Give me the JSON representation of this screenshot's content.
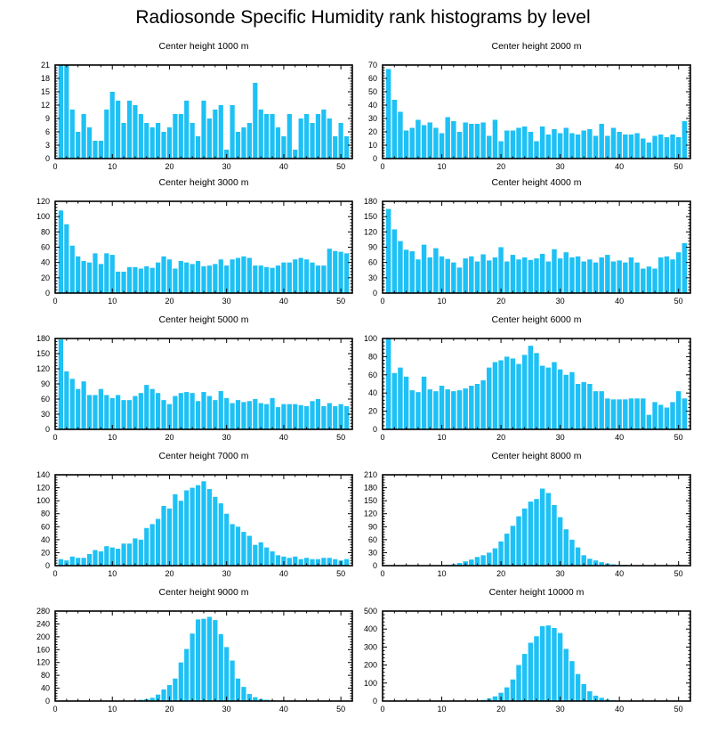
{
  "title": "Radiosonde Specific Humidity rank histograms by level",
  "colors": {
    "bar": "#1ec1f5",
    "axis": "#000000"
  },
  "chart_data": [
    {
      "type": "bar",
      "title": "Center height 1000 m",
      "x": [
        1,
        2,
        3,
        4,
        5,
        6,
        7,
        8,
        9,
        10,
        11,
        12,
        13,
        14,
        15,
        16,
        17,
        18,
        19,
        20,
        21,
        22,
        23,
        24,
        25,
        26,
        27,
        28,
        29,
        30,
        31,
        32,
        33,
        34,
        35,
        36,
        37,
        38,
        39,
        40,
        41,
        42,
        43,
        44,
        45,
        46,
        47,
        48,
        49,
        50,
        51
      ],
      "values": [
        21,
        21,
        11,
        6,
        10,
        7,
        4,
        4,
        11,
        15,
        13,
        8,
        13,
        12,
        10,
        8,
        7,
        8,
        6,
        7,
        10,
        10,
        13,
        8,
        5,
        13,
        9,
        11,
        12,
        2,
        12,
        6,
        7,
        8,
        17,
        11,
        10,
        10,
        7,
        5,
        10,
        2,
        9,
        10,
        8,
        10,
        11,
        9,
        5,
        8,
        5
      ],
      "xlim": [
        0,
        52
      ],
      "xticks": [
        0,
        10,
        20,
        30,
        40,
        50
      ],
      "ylim": [
        0,
        21
      ],
      "yticks": [
        0,
        3,
        6,
        9,
        12,
        15,
        18,
        21
      ]
    },
    {
      "type": "bar",
      "title": "Center height 2000 m",
      "x": [
        1,
        2,
        3,
        4,
        5,
        6,
        7,
        8,
        9,
        10,
        11,
        12,
        13,
        14,
        15,
        16,
        17,
        18,
        19,
        20,
        21,
        22,
        23,
        24,
        25,
        26,
        27,
        28,
        29,
        30,
        31,
        32,
        33,
        34,
        35,
        36,
        37,
        38,
        39,
        40,
        41,
        42,
        43,
        44,
        45,
        46,
        47,
        48,
        49,
        50,
        51
      ],
      "values": [
        67,
        44,
        35,
        21,
        23,
        29,
        25,
        27,
        23,
        19,
        31,
        28,
        20,
        27,
        26,
        26,
        27,
        17,
        29,
        13,
        21,
        21,
        23,
        24,
        20,
        13,
        24,
        18,
        22,
        19,
        23,
        19,
        18,
        21,
        22,
        17,
        26,
        17,
        23,
        20,
        18,
        18,
        19,
        15,
        12,
        17,
        18,
        16,
        18,
        16,
        28
      ],
      "xlim": [
        0,
        52
      ],
      "xticks": [
        0,
        10,
        20,
        30,
        40,
        50
      ],
      "ylim": [
        0,
        70
      ],
      "yticks": [
        0,
        10,
        20,
        30,
        40,
        50,
        60,
        70
      ]
    },
    {
      "type": "bar",
      "title": "Center height 3000 m",
      "x": [
        1,
        2,
        3,
        4,
        5,
        6,
        7,
        8,
        9,
        10,
        11,
        12,
        13,
        14,
        15,
        16,
        17,
        18,
        19,
        20,
        21,
        22,
        23,
        24,
        25,
        26,
        27,
        28,
        29,
        30,
        31,
        32,
        33,
        34,
        35,
        36,
        37,
        38,
        39,
        40,
        41,
        42,
        43,
        44,
        45,
        46,
        47,
        48,
        49,
        50,
        51
      ],
      "values": [
        108,
        90,
        62,
        48,
        42,
        40,
        52,
        38,
        52,
        50,
        28,
        28,
        34,
        34,
        32,
        35,
        33,
        40,
        48,
        44,
        32,
        42,
        40,
        38,
        42,
        35,
        36,
        38,
        44,
        36,
        44,
        46,
        48,
        46,
        36,
        36,
        34,
        33,
        36,
        40,
        40,
        44,
        46,
        44,
        40,
        36,
        36,
        58,
        55,
        54,
        52
      ],
      "xlim": [
        0,
        52
      ],
      "xticks": [
        0,
        10,
        20,
        30,
        40,
        50
      ],
      "ylim": [
        0,
        120
      ],
      "yticks": [
        0,
        20,
        40,
        60,
        80,
        100,
        120
      ]
    },
    {
      "type": "bar",
      "title": "Center height 4000 m",
      "x": [
        1,
        2,
        3,
        4,
        5,
        6,
        7,
        8,
        9,
        10,
        11,
        12,
        13,
        14,
        15,
        16,
        17,
        18,
        19,
        20,
        21,
        22,
        23,
        24,
        25,
        26,
        27,
        28,
        29,
        30,
        31,
        32,
        33,
        34,
        35,
        36,
        37,
        38,
        39,
        40,
        41,
        42,
        43,
        44,
        45,
        46,
        47,
        48,
        49,
        50,
        51
      ],
      "values": [
        165,
        125,
        102,
        85,
        82,
        66,
        95,
        70,
        88,
        72,
        67,
        60,
        50,
        68,
        72,
        62,
        76,
        64,
        70,
        90,
        62,
        75,
        66,
        70,
        65,
        68,
        77,
        62,
        86,
        68,
        80,
        70,
        72,
        62,
        66,
        60,
        70,
        75,
        62,
        64,
        60,
        70,
        60,
        48,
        52,
        48,
        70,
        72,
        66,
        80,
        98
      ],
      "xlim": [
        0,
        52
      ],
      "xticks": [
        0,
        10,
        20,
        30,
        40,
        50
      ],
      "ylim": [
        0,
        180
      ],
      "yticks": [
        0,
        30,
        60,
        90,
        120,
        150,
        180
      ]
    },
    {
      "type": "bar",
      "title": "Center height 5000 m",
      "x": [
        1,
        2,
        3,
        4,
        5,
        6,
        7,
        8,
        9,
        10,
        11,
        12,
        13,
        14,
        15,
        16,
        17,
        18,
        19,
        20,
        21,
        22,
        23,
        24,
        25,
        26,
        27,
        28,
        29,
        30,
        31,
        32,
        33,
        34,
        35,
        36,
        37,
        38,
        39,
        40,
        41,
        42,
        43,
        44,
        45,
        46,
        47,
        48,
        49,
        50,
        51
      ],
      "values": [
        178,
        115,
        100,
        80,
        95,
        68,
        68,
        80,
        68,
        62,
        68,
        58,
        58,
        66,
        72,
        88,
        80,
        72,
        58,
        50,
        66,
        72,
        74,
        72,
        56,
        74,
        66,
        58,
        76,
        62,
        52,
        58,
        54,
        56,
        60,
        52,
        50,
        62,
        44,
        50,
        50,
        50,
        48,
        46,
        56,
        60,
        46,
        52,
        46,
        50,
        46
      ],
      "xlim": [
        0,
        52
      ],
      "xticks": [
        0,
        10,
        20,
        30,
        40,
        50
      ],
      "ylim": [
        0,
        180
      ],
      "yticks": [
        0,
        30,
        60,
        90,
        120,
        150,
        180
      ]
    },
    {
      "type": "bar",
      "title": "Center height 6000 m",
      "x": [
        1,
        2,
        3,
        4,
        5,
        6,
        7,
        8,
        9,
        10,
        11,
        12,
        13,
        14,
        15,
        16,
        17,
        18,
        19,
        20,
        21,
        22,
        23,
        24,
        25,
        26,
        27,
        28,
        29,
        30,
        31,
        32,
        33,
        34,
        35,
        36,
        37,
        38,
        39,
        40,
        41,
        42,
        43,
        44,
        45,
        46,
        47,
        48,
        49,
        50,
        51
      ],
      "values": [
        100,
        62,
        68,
        58,
        43,
        41,
        58,
        44,
        42,
        48,
        44,
        42,
        43,
        45,
        48,
        50,
        54,
        68,
        74,
        76,
        80,
        78,
        72,
        82,
        92,
        84,
        70,
        68,
        74,
        66,
        60,
        63,
        50,
        52,
        50,
        42,
        42,
        34,
        33,
        33,
        33,
        34,
        34,
        34,
        16,
        30,
        27,
        24,
        30,
        42,
        34
      ],
      "xlim": [
        0,
        52
      ],
      "xticks": [
        0,
        10,
        20,
        30,
        40,
        50
      ],
      "ylim": [
        0,
        100
      ],
      "yticks": [
        0,
        20,
        40,
        60,
        80,
        100
      ]
    },
    {
      "type": "bar",
      "title": "Center height 7000 m",
      "x": [
        1,
        2,
        3,
        4,
        5,
        6,
        7,
        8,
        9,
        10,
        11,
        12,
        13,
        14,
        15,
        16,
        17,
        18,
        19,
        20,
        21,
        22,
        23,
        24,
        25,
        26,
        27,
        28,
        29,
        30,
        31,
        32,
        33,
        34,
        35,
        36,
        37,
        38,
        39,
        40,
        41,
        42,
        43,
        44,
        45,
        46,
        47,
        48,
        49,
        50,
        51
      ],
      "values": [
        10,
        8,
        14,
        12,
        12,
        18,
        24,
        22,
        30,
        28,
        26,
        34,
        34,
        42,
        40,
        58,
        64,
        72,
        92,
        88,
        110,
        100,
        116,
        120,
        124,
        130,
        118,
        106,
        96,
        80,
        64,
        60,
        52,
        46,
        32,
        36,
        28,
        22,
        16,
        14,
        12,
        14,
        10,
        12,
        10,
        10,
        12,
        12,
        10,
        8,
        10
      ],
      "xlim": [
        0,
        52
      ],
      "xticks": [
        0,
        10,
        20,
        30,
        40,
        50
      ],
      "ylim": [
        0,
        140
      ],
      "yticks": [
        0,
        20,
        40,
        60,
        80,
        100,
        120,
        140
      ]
    },
    {
      "type": "bar",
      "title": "Center height 8000 m",
      "x": [
        1,
        2,
        3,
        4,
        5,
        6,
        7,
        8,
        9,
        10,
        11,
        12,
        13,
        14,
        15,
        16,
        17,
        18,
        19,
        20,
        21,
        22,
        23,
        24,
        25,
        26,
        27,
        28,
        29,
        30,
        31,
        32,
        33,
        34,
        35,
        36,
        37,
        38,
        39,
        40,
        41,
        42,
        43,
        44,
        45,
        46,
        47,
        48,
        49,
        50,
        51
      ],
      "values": [
        0,
        0,
        0,
        0,
        0,
        0,
        0,
        0,
        0,
        1,
        2,
        3,
        6,
        10,
        14,
        20,
        24,
        30,
        40,
        56,
        74,
        92,
        114,
        132,
        148,
        154,
        178,
        168,
        140,
        112,
        84,
        60,
        42,
        24,
        16,
        12,
        8,
        5,
        3,
        2,
        2,
        1,
        0,
        0,
        0,
        0,
        0,
        0,
        1,
        2,
        0
      ],
      "xlim": [
        0,
        52
      ],
      "xticks": [
        0,
        10,
        20,
        30,
        40,
        50
      ],
      "ylim": [
        0,
        210
      ],
      "yticks": [
        0,
        30,
        60,
        90,
        120,
        150,
        180,
        210
      ]
    },
    {
      "type": "bar",
      "title": "Center height 9000 m",
      "x": [
        1,
        2,
        3,
        4,
        5,
        6,
        7,
        8,
        9,
        10,
        11,
        12,
        13,
        14,
        15,
        16,
        17,
        18,
        19,
        20,
        21,
        22,
        23,
        24,
        25,
        26,
        27,
        28,
        29,
        30,
        31,
        32,
        33,
        34,
        35,
        36,
        37,
        38,
        39,
        40,
        41,
        42,
        43,
        44,
        45,
        46,
        47,
        48,
        49,
        50,
        51
      ],
      "values": [
        0,
        0,
        0,
        0,
        0,
        0,
        0,
        0,
        0,
        0,
        0,
        0,
        1,
        2,
        4,
        6,
        10,
        20,
        36,
        50,
        70,
        120,
        162,
        210,
        254,
        256,
        262,
        252,
        208,
        168,
        126,
        70,
        44,
        22,
        12,
        6,
        4,
        2,
        1,
        0,
        0,
        0,
        0,
        0,
        0,
        0,
        0,
        0,
        0,
        0,
        0
      ],
      "xlim": [
        0,
        52
      ],
      "xticks": [
        0,
        10,
        20,
        30,
        40,
        50
      ],
      "ylim": [
        0,
        280
      ],
      "yticks": [
        0,
        40,
        80,
        120,
        160,
        200,
        240,
        280
      ]
    },
    {
      "type": "bar",
      "title": "Center height 10000 m",
      "x": [
        1,
        2,
        3,
        4,
        5,
        6,
        7,
        8,
        9,
        10,
        11,
        12,
        13,
        14,
        15,
        16,
        17,
        18,
        19,
        20,
        21,
        22,
        23,
        24,
        25,
        26,
        27,
        28,
        29,
        30,
        31,
        32,
        33,
        34,
        35,
        36,
        37,
        38,
        39,
        40,
        41,
        42,
        43,
        44,
        45,
        46,
        47,
        48,
        49,
        50,
        51
      ],
      "values": [
        0,
        0,
        0,
        0,
        0,
        0,
        0,
        0,
        0,
        0,
        0,
        0,
        0,
        0,
        0,
        2,
        6,
        14,
        26,
        46,
        76,
        120,
        200,
        262,
        324,
        360,
        416,
        420,
        406,
        378,
        290,
        222,
        150,
        94,
        54,
        30,
        18,
        8,
        4,
        2,
        0,
        0,
        0,
        0,
        0,
        0,
        0,
        0,
        0,
        0,
        0
      ],
      "xlim": [
        0,
        52
      ],
      "xticks": [
        0,
        10,
        20,
        30,
        40,
        50
      ],
      "ylim": [
        0,
        500
      ],
      "yticks": [
        0,
        100,
        200,
        300,
        400,
        500
      ]
    }
  ]
}
